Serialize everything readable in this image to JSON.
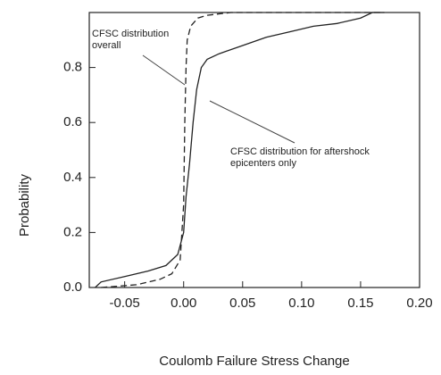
{
  "chart_data": {
    "type": "line",
    "xlabel": "Coulomb Failure Stress Change",
    "ylabel": "Probability",
    "xlim": [
      -0.08,
      0.2
    ],
    "ylim": [
      0,
      1
    ],
    "xticks": [
      -0.05,
      {
        "value": 0,
        "label": "0.00"
      },
      0.05,
      {
        "value": 0.1,
        "label": "0.10"
      },
      0.15,
      {
        "value": 0.2,
        "label": "0.20"
      }
    ],
    "yticks": [
      {
        "value": 0,
        "label": "0.0"
      },
      0.2,
      0.4,
      0.6,
      0.8
    ],
    "series": [
      {
        "name": "CFSC distribution overall",
        "color": "#222222",
        "dash": true,
        "x": [
          -0.07,
          -0.04,
          -0.02,
          -0.01,
          -0.003,
          0,
          0.001,
          0.002,
          0.003,
          0.006,
          0.012,
          0.02,
          0.04,
          0.17
        ],
        "values": [
          0,
          0.01,
          0.03,
          0.05,
          0.1,
          0.3,
          0.6,
          0.8,
          0.9,
          0.95,
          0.98,
          0.99,
          1,
          1
        ]
      },
      {
        "name": "CFSC distribution for aftershock epicenters only",
        "color": "#222222",
        "dash": false,
        "x": [
          -0.075,
          -0.07,
          -0.05,
          -0.03,
          -0.015,
          -0.005,
          0,
          0.002,
          0.005,
          0.008,
          0.011,
          0.015,
          0.02,
          0.03,
          0.05,
          0.07,
          0.09,
          0.11,
          0.13,
          0.15,
          0.16,
          0.17
        ],
        "values": [
          0,
          0.02,
          0.04,
          0.06,
          0.08,
          0.12,
          0.2,
          0.33,
          0.45,
          0.6,
          0.72,
          0.8,
          0.83,
          0.85,
          0.88,
          0.91,
          0.93,
          0.95,
          0.96,
          0.98,
          1,
          1
        ]
      }
    ]
  }
}
